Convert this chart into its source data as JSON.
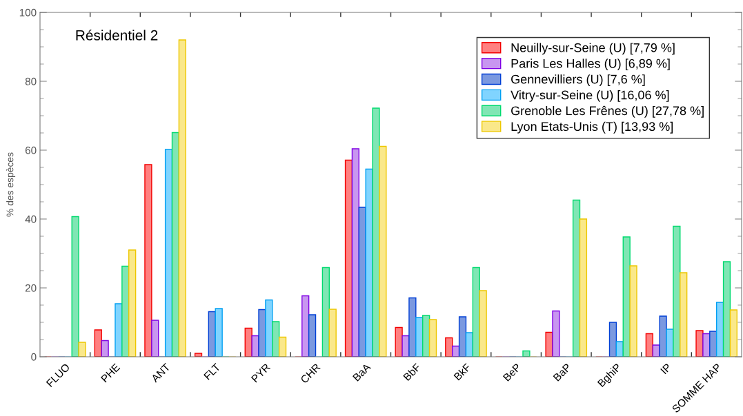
{
  "chart_data": {
    "type": "bar",
    "title": "Résidentiel 2",
    "ylabel": "% des espèces",
    "categories": [
      "FLUO",
      "PHE",
      "ANT",
      "FLT",
      "PYR",
      "CHR",
      "BaA",
      "BbF",
      "BkF",
      "BeP",
      "BaP",
      "BghiP",
      "IP",
      "SOMME HAP"
    ],
    "series": [
      {
        "name": "Neuilly-sur-Seine (U) [7,79 %]",
        "color": "#ff8080",
        "values": [
          0,
          7.8,
          55.8,
          1,
          8.3,
          0,
          57.1,
          8.5,
          5.5,
          0,
          7.1,
          0,
          6.7,
          7.6
        ]
      },
      {
        "name": "Paris Les Halles (U) [6,89 %]",
        "color": "#c896f0",
        "values": [
          0,
          4.7,
          10.6,
          0,
          6.1,
          17.7,
          60.4,
          6.1,
          3.1,
          0,
          13.3,
          0,
          3.4,
          6.7
        ]
      },
      {
        "name": "Gennevilliers (U) [7,6 %]",
        "color": "#7b99e0",
        "values": [
          0,
          0,
          0,
          13.1,
          13.7,
          12.2,
          43.4,
          17.1,
          11.6,
          0,
          0,
          10,
          11.8,
          7.4
        ]
      },
      {
        "name": "Vitry-sur-Seine (U) [16,06 %]",
        "color": "#80d4ff",
        "values": [
          0,
          15.4,
          60.2,
          14,
          16.5,
          0,
          54.5,
          11.4,
          7,
          0,
          0,
          4.4,
          8,
          15.8
        ]
      },
      {
        "name": "Grenoble Les Frênes (U) [27,78 %]",
        "color": "#80e6b4",
        "values": [
          40.7,
          26.3,
          65.1,
          0,
          10.2,
          25.9,
          72.2,
          12,
          25.9,
          1.7,
          45.5,
          34.8,
          37.9,
          27.6
        ]
      },
      {
        "name": "Lyon Etats-Unis (T) [13,93 %]",
        "color": "#fae88a",
        "values": [
          4.2,
          31,
          92,
          0,
          5.7,
          13.8,
          61.1,
          10.8,
          19.2,
          0,
          40,
          26.4,
          24.4,
          13.6
        ]
      }
    ],
    "ylim": [
      0,
      100
    ],
    "yticks": [
      0,
      20,
      40,
      60,
      80,
      100
    ],
    "grid": false,
    "legend": "top right"
  }
}
